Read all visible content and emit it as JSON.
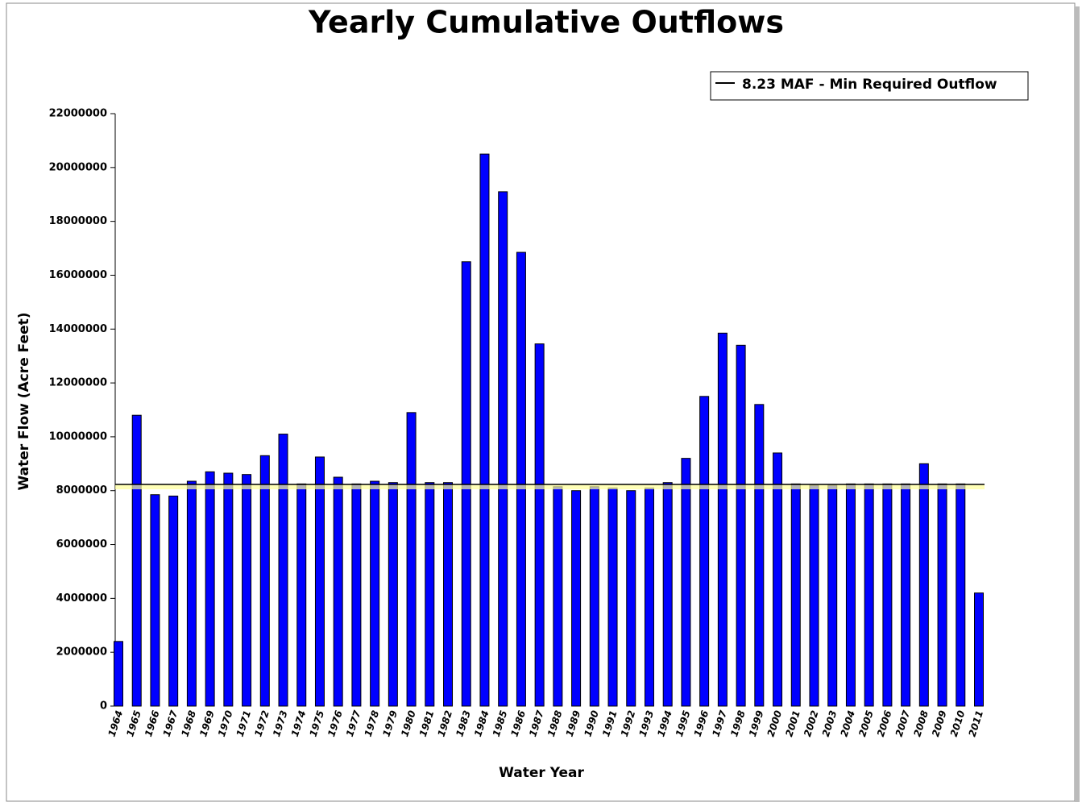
{
  "chart_data": {
    "type": "bar",
    "title": "Yearly Cumulative Outflows",
    "x_label": "Water Year",
    "y_label": "Water Flow (Acre Feet)",
    "categories": [
      "1964",
      "1965",
      "1966",
      "1967",
      "1968",
      "1969",
      "1970",
      "1971",
      "1972",
      "1973",
      "1974",
      "1975",
      "1976",
      "1977",
      "1978",
      "1979",
      "1980",
      "1981",
      "1982",
      "1983",
      "1984",
      "1985",
      "1986",
      "1987",
      "1988",
      "1989",
      "1990",
      "1991",
      "1992",
      "1993",
      "1994",
      "1995",
      "1996",
      "1997",
      "1998",
      "1999",
      "2000",
      "2001",
      "2002",
      "2003",
      "2004",
      "2005",
      "2006",
      "2007",
      "2008",
      "2009",
      "2010",
      "2011"
    ],
    "values": [
      2400000,
      10800000,
      7850000,
      7800000,
      8350000,
      8700000,
      8650000,
      8600000,
      9300000,
      10100000,
      8250000,
      9250000,
      8500000,
      8250000,
      8350000,
      8300000,
      10900000,
      8300000,
      8300000,
      16500000,
      20500000,
      19100000,
      16850000,
      13450000,
      8150000,
      8000000,
      8150000,
      8100000,
      8000000,
      8100000,
      8300000,
      9200000,
      11500000,
      13850000,
      13400000,
      11200000,
      9400000,
      8250000,
      8200000,
      8200000,
      8250000,
      8250000,
      8250000,
      8250000,
      9000000,
      8250000,
      8250000,
      4200000
    ],
    "color": "#0000ff",
    "reference_line": {
      "name": "8.23 MAF - Min Required Outflow",
      "value": 8230000,
      "color": "#000000"
    },
    "ylim": [
      0,
      22000000
    ],
    "yticks": [
      0,
      2000000,
      4000000,
      6000000,
      8000000,
      10000000,
      12000000,
      14000000,
      16000000,
      18000000,
      20000000,
      22000000
    ],
    "grid": false,
    "legend_position": "top-right"
  }
}
